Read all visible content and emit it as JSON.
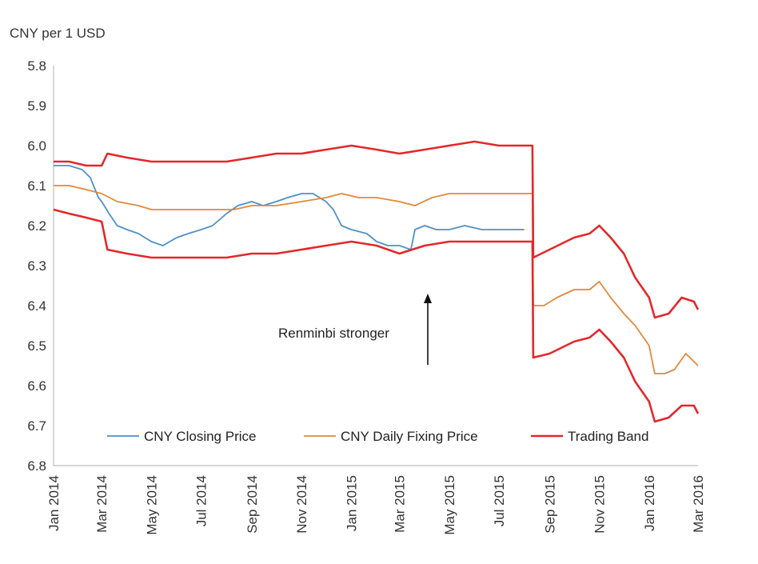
{
  "chart_data": {
    "type": "line",
    "ylabel": "CNY per 1 USD",
    "y_inverted": true,
    "ylim": [
      5.8,
      6.8
    ],
    "yticks": [
      "5.8",
      "5.9",
      "6.0",
      "6.1",
      "6.2",
      "6.3",
      "6.4",
      "6.5",
      "6.6",
      "6.7",
      "6.8"
    ],
    "xlim": [
      "2014-01-01",
      "2016-03-01"
    ],
    "xticks": [
      {
        "date": "2014-01-01",
        "label": "Jan 2014"
      },
      {
        "date": "2014-03-01",
        "label": "Mar 2014"
      },
      {
        "date": "2014-05-01",
        "label": "May 2014"
      },
      {
        "date": "2014-07-01",
        "label": "Jul 2014"
      },
      {
        "date": "2014-09-01",
        "label": "Sep 2014"
      },
      {
        "date": "2014-11-01",
        "label": "Nov 2014"
      },
      {
        "date": "2015-01-01",
        "label": "Jan 2015"
      },
      {
        "date": "2015-03-01",
        "label": "Mar 2015"
      },
      {
        "date": "2015-05-01",
        "label": "May 2015"
      },
      {
        "date": "2015-07-01",
        "label": "Jul 2015"
      },
      {
        "date": "2015-09-01",
        "label": "Sep 2015"
      },
      {
        "date": "2015-11-01",
        "label": "Nov 2015"
      },
      {
        "date": "2016-01-01",
        "label": "Jan 2016"
      },
      {
        "date": "2016-03-01",
        "label": "Mar 2016"
      }
    ],
    "annotation": {
      "text": "Renminbi stronger",
      "arrow": "up"
    },
    "legend_position": "bottom",
    "series": [
      {
        "name": "CNY Closing Price",
        "color": "#4f90c9",
        "points": [
          [
            "2014-01-01",
            6.05
          ],
          [
            "2014-01-20",
            6.05
          ],
          [
            "2014-02-05",
            6.06
          ],
          [
            "2014-02-15",
            6.08
          ],
          [
            "2014-02-25",
            6.13
          ],
          [
            "2014-03-01",
            6.14
          ],
          [
            "2014-03-10",
            6.17
          ],
          [
            "2014-03-20",
            6.2
          ],
          [
            "2014-04-01",
            6.21
          ],
          [
            "2014-04-15",
            6.22
          ],
          [
            "2014-05-01",
            6.24
          ],
          [
            "2014-05-15",
            6.25
          ],
          [
            "2014-06-01",
            6.23
          ],
          [
            "2014-06-15",
            6.22
          ],
          [
            "2014-07-01",
            6.21
          ],
          [
            "2014-07-15",
            6.2
          ],
          [
            "2014-08-01",
            6.17
          ],
          [
            "2014-08-15",
            6.15
          ],
          [
            "2014-09-01",
            6.14
          ],
          [
            "2014-09-15",
            6.15
          ],
          [
            "2014-10-01",
            6.14
          ],
          [
            "2014-10-15",
            6.13
          ],
          [
            "2014-11-01",
            6.12
          ],
          [
            "2014-11-15",
            6.12
          ],
          [
            "2014-12-01",
            6.14
          ],
          [
            "2014-12-10",
            6.16
          ],
          [
            "2014-12-20",
            6.2
          ],
          [
            "2015-01-01",
            6.21
          ],
          [
            "2015-01-20",
            6.22
          ],
          [
            "2015-02-01",
            6.24
          ],
          [
            "2015-02-15",
            6.25
          ],
          [
            "2015-03-01",
            6.25
          ],
          [
            "2015-03-15",
            6.26
          ],
          [
            "2015-03-20",
            6.21
          ],
          [
            "2015-04-01",
            6.2
          ],
          [
            "2015-04-15",
            6.21
          ],
          [
            "2015-05-01",
            6.21
          ],
          [
            "2015-05-20",
            6.2
          ],
          [
            "2015-06-10",
            6.21
          ],
          [
            "2015-07-01",
            6.21
          ],
          [
            "2015-07-20",
            6.21
          ],
          [
            "2015-08-01",
            6.21
          ]
        ]
      },
      {
        "name": "CNY Daily Fixing Price",
        "color": "#e08a3c",
        "points": [
          [
            "2014-01-01",
            6.1
          ],
          [
            "2014-01-20",
            6.1
          ],
          [
            "2014-02-10",
            6.11
          ],
          [
            "2014-03-01",
            6.12
          ],
          [
            "2014-03-20",
            6.14
          ],
          [
            "2014-04-15",
            6.15
          ],
          [
            "2014-05-01",
            6.16
          ],
          [
            "2014-05-20",
            6.16
          ],
          [
            "2014-06-15",
            6.16
          ],
          [
            "2014-07-01",
            6.16
          ],
          [
            "2014-07-20",
            6.16
          ],
          [
            "2014-08-10",
            6.16
          ],
          [
            "2014-09-01",
            6.15
          ],
          [
            "2014-10-01",
            6.15
          ],
          [
            "2014-11-01",
            6.14
          ],
          [
            "2014-12-01",
            6.13
          ],
          [
            "2014-12-20",
            6.12
          ],
          [
            "2015-01-10",
            6.13
          ],
          [
            "2015-02-01",
            6.13
          ],
          [
            "2015-03-01",
            6.14
          ],
          [
            "2015-03-20",
            6.15
          ],
          [
            "2015-04-10",
            6.13
          ],
          [
            "2015-05-01",
            6.12
          ],
          [
            "2015-06-01",
            6.12
          ],
          [
            "2015-07-01",
            6.12
          ],
          [
            "2015-08-01",
            6.12
          ],
          [
            "2015-08-11",
            6.12
          ],
          [
            "2015-08-12",
            6.4
          ],
          [
            "2015-08-25",
            6.4
          ],
          [
            "2015-09-10",
            6.38
          ],
          [
            "2015-10-01",
            6.36
          ],
          [
            "2015-10-20",
            6.36
          ],
          [
            "2015-11-01",
            6.34
          ],
          [
            "2015-11-15",
            6.38
          ],
          [
            "2015-12-01",
            6.42
          ],
          [
            "2015-12-15",
            6.45
          ],
          [
            "2016-01-01",
            6.5
          ],
          [
            "2016-01-08",
            6.57
          ],
          [
            "2016-01-20",
            6.57
          ],
          [
            "2016-02-01",
            6.56
          ],
          [
            "2016-02-15",
            6.52
          ],
          [
            "2016-02-25",
            6.54
          ],
          [
            "2016-03-01",
            6.55
          ]
        ]
      },
      {
        "name": "Trading Band (upper)",
        "color": "#e3282b",
        "points": [
          [
            "2014-01-01",
            6.04
          ],
          [
            "2014-01-20",
            6.04
          ],
          [
            "2014-02-10",
            6.05
          ],
          [
            "2014-03-01",
            6.05
          ],
          [
            "2014-03-08",
            6.02
          ],
          [
            "2014-04-01",
            6.03
          ],
          [
            "2014-05-01",
            6.04
          ],
          [
            "2014-06-01",
            6.04
          ],
          [
            "2014-07-01",
            6.04
          ],
          [
            "2014-08-01",
            6.04
          ],
          [
            "2014-09-01",
            6.03
          ],
          [
            "2014-10-01",
            6.02
          ],
          [
            "2014-11-01",
            6.02
          ],
          [
            "2014-12-01",
            6.01
          ],
          [
            "2015-01-01",
            6.0
          ],
          [
            "2015-02-01",
            6.01
          ],
          [
            "2015-03-01",
            6.02
          ],
          [
            "2015-04-01",
            6.01
          ],
          [
            "2015-05-01",
            6.0
          ],
          [
            "2015-06-01",
            5.99
          ],
          [
            "2015-07-01",
            6.0
          ],
          [
            "2015-08-01",
            6.0
          ],
          [
            "2015-08-11",
            6.0
          ],
          [
            "2015-08-12",
            6.28
          ],
          [
            "2015-09-01",
            6.26
          ],
          [
            "2015-10-01",
            6.23
          ],
          [
            "2015-10-20",
            6.22
          ],
          [
            "2015-11-01",
            6.2
          ],
          [
            "2015-11-15",
            6.23
          ],
          [
            "2015-12-01",
            6.27
          ],
          [
            "2015-12-15",
            6.33
          ],
          [
            "2016-01-01",
            6.38
          ],
          [
            "2016-01-08",
            6.43
          ],
          [
            "2016-01-25",
            6.42
          ],
          [
            "2016-02-10",
            6.38
          ],
          [
            "2016-02-25",
            6.39
          ],
          [
            "2016-03-01",
            6.41
          ]
        ]
      },
      {
        "name": "Trading Band",
        "color": "#e3282b",
        "points": [
          [
            "2014-01-01",
            6.16
          ],
          [
            "2014-01-20",
            6.17
          ],
          [
            "2014-02-10",
            6.18
          ],
          [
            "2014-03-01",
            6.19
          ],
          [
            "2014-03-08",
            6.26
          ],
          [
            "2014-04-01",
            6.27
          ],
          [
            "2014-05-01",
            6.28
          ],
          [
            "2014-06-01",
            6.28
          ],
          [
            "2014-07-01",
            6.28
          ],
          [
            "2014-08-01",
            6.28
          ],
          [
            "2014-09-01",
            6.27
          ],
          [
            "2014-10-01",
            6.27
          ],
          [
            "2014-11-01",
            6.26
          ],
          [
            "2014-12-01",
            6.25
          ],
          [
            "2015-01-01",
            6.24
          ],
          [
            "2015-02-01",
            6.25
          ],
          [
            "2015-03-01",
            6.27
          ],
          [
            "2015-04-01",
            6.25
          ],
          [
            "2015-05-01",
            6.24
          ],
          [
            "2015-06-01",
            6.24
          ],
          [
            "2015-07-01",
            6.24
          ],
          [
            "2015-08-01",
            6.24
          ],
          [
            "2015-08-11",
            6.24
          ],
          [
            "2015-08-12",
            6.53
          ],
          [
            "2015-09-01",
            6.52
          ],
          [
            "2015-10-01",
            6.49
          ],
          [
            "2015-10-20",
            6.48
          ],
          [
            "2015-11-01",
            6.46
          ],
          [
            "2015-11-15",
            6.49
          ],
          [
            "2015-12-01",
            6.53
          ],
          [
            "2015-12-15",
            6.59
          ],
          [
            "2016-01-01",
            6.64
          ],
          [
            "2016-01-08",
            6.69
          ],
          [
            "2016-01-25",
            6.68
          ],
          [
            "2016-02-10",
            6.65
          ],
          [
            "2016-02-25",
            6.65
          ],
          [
            "2016-03-01",
            6.67
          ]
        ]
      }
    ],
    "legend": [
      {
        "label": "CNY Closing Price",
        "color": "#4f90c9"
      },
      {
        "label": "CNY Daily Fixing Price",
        "color": "#e08a3c"
      },
      {
        "label": "Trading Band",
        "color": "#e3282b"
      }
    ]
  }
}
